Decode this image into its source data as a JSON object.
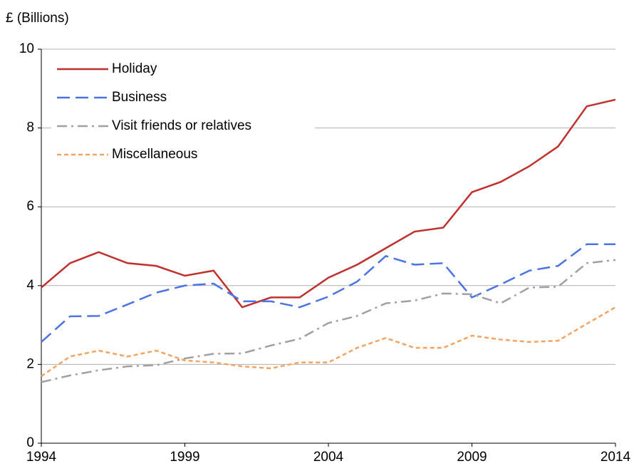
{
  "chart_data": {
    "type": "line",
    "y_label": "£ (Billions)",
    "x": [
      1994,
      1995,
      1996,
      1997,
      1998,
      1999,
      2000,
      2001,
      2002,
      2003,
      2004,
      2005,
      2006,
      2007,
      2008,
      2009,
      2010,
      2011,
      2012,
      2013,
      2014
    ],
    "xlim": [
      1994,
      2014
    ],
    "xticks": [
      1994,
      1999,
      2004,
      2009,
      2014
    ],
    "ylim": [
      0,
      10
    ],
    "yticks": [
      0,
      2,
      4,
      6,
      8,
      10
    ],
    "grid": true,
    "legend": "upper left",
    "series": [
      {
        "name": "Holiday",
        "color": "#c0302c",
        "line_style": "solid",
        "values": [
          3.95,
          4.57,
          4.85,
          4.57,
          4.5,
          4.25,
          4.38,
          3.45,
          3.7,
          3.7,
          4.2,
          4.53,
          4.95,
          5.37,
          5.47,
          6.37,
          6.63,
          7.03,
          7.53,
          8.55,
          8.72
        ]
      },
      {
        "name": "Business",
        "color": "#4a74e6",
        "line_style": "dashed",
        "values": [
          2.57,
          3.22,
          3.23,
          3.52,
          3.82,
          4.0,
          4.05,
          3.6,
          3.6,
          3.45,
          3.72,
          4.1,
          4.75,
          4.53,
          4.57,
          3.7,
          4.03,
          4.38,
          4.5,
          5.05,
          5.05
        ]
      },
      {
        "name": "Visit friends or relatives",
        "color": "#a0a0a0",
        "line_style": "dashdot",
        "values": [
          1.55,
          1.72,
          1.85,
          1.95,
          1.98,
          2.15,
          2.27,
          2.28,
          2.48,
          2.65,
          3.05,
          3.23,
          3.55,
          3.62,
          3.8,
          3.78,
          3.55,
          3.95,
          3.97,
          4.57,
          4.65
        ]
      },
      {
        "name": "Miscellaneous",
        "color": "#f4a460",
        "line_style": "dotted",
        "values": [
          1.7,
          2.2,
          2.35,
          2.2,
          2.35,
          2.1,
          2.05,
          1.95,
          1.9,
          2.05,
          2.05,
          2.42,
          2.67,
          2.42,
          2.42,
          2.73,
          2.63,
          2.57,
          2.6,
          3.03,
          3.45
        ]
      }
    ]
  }
}
